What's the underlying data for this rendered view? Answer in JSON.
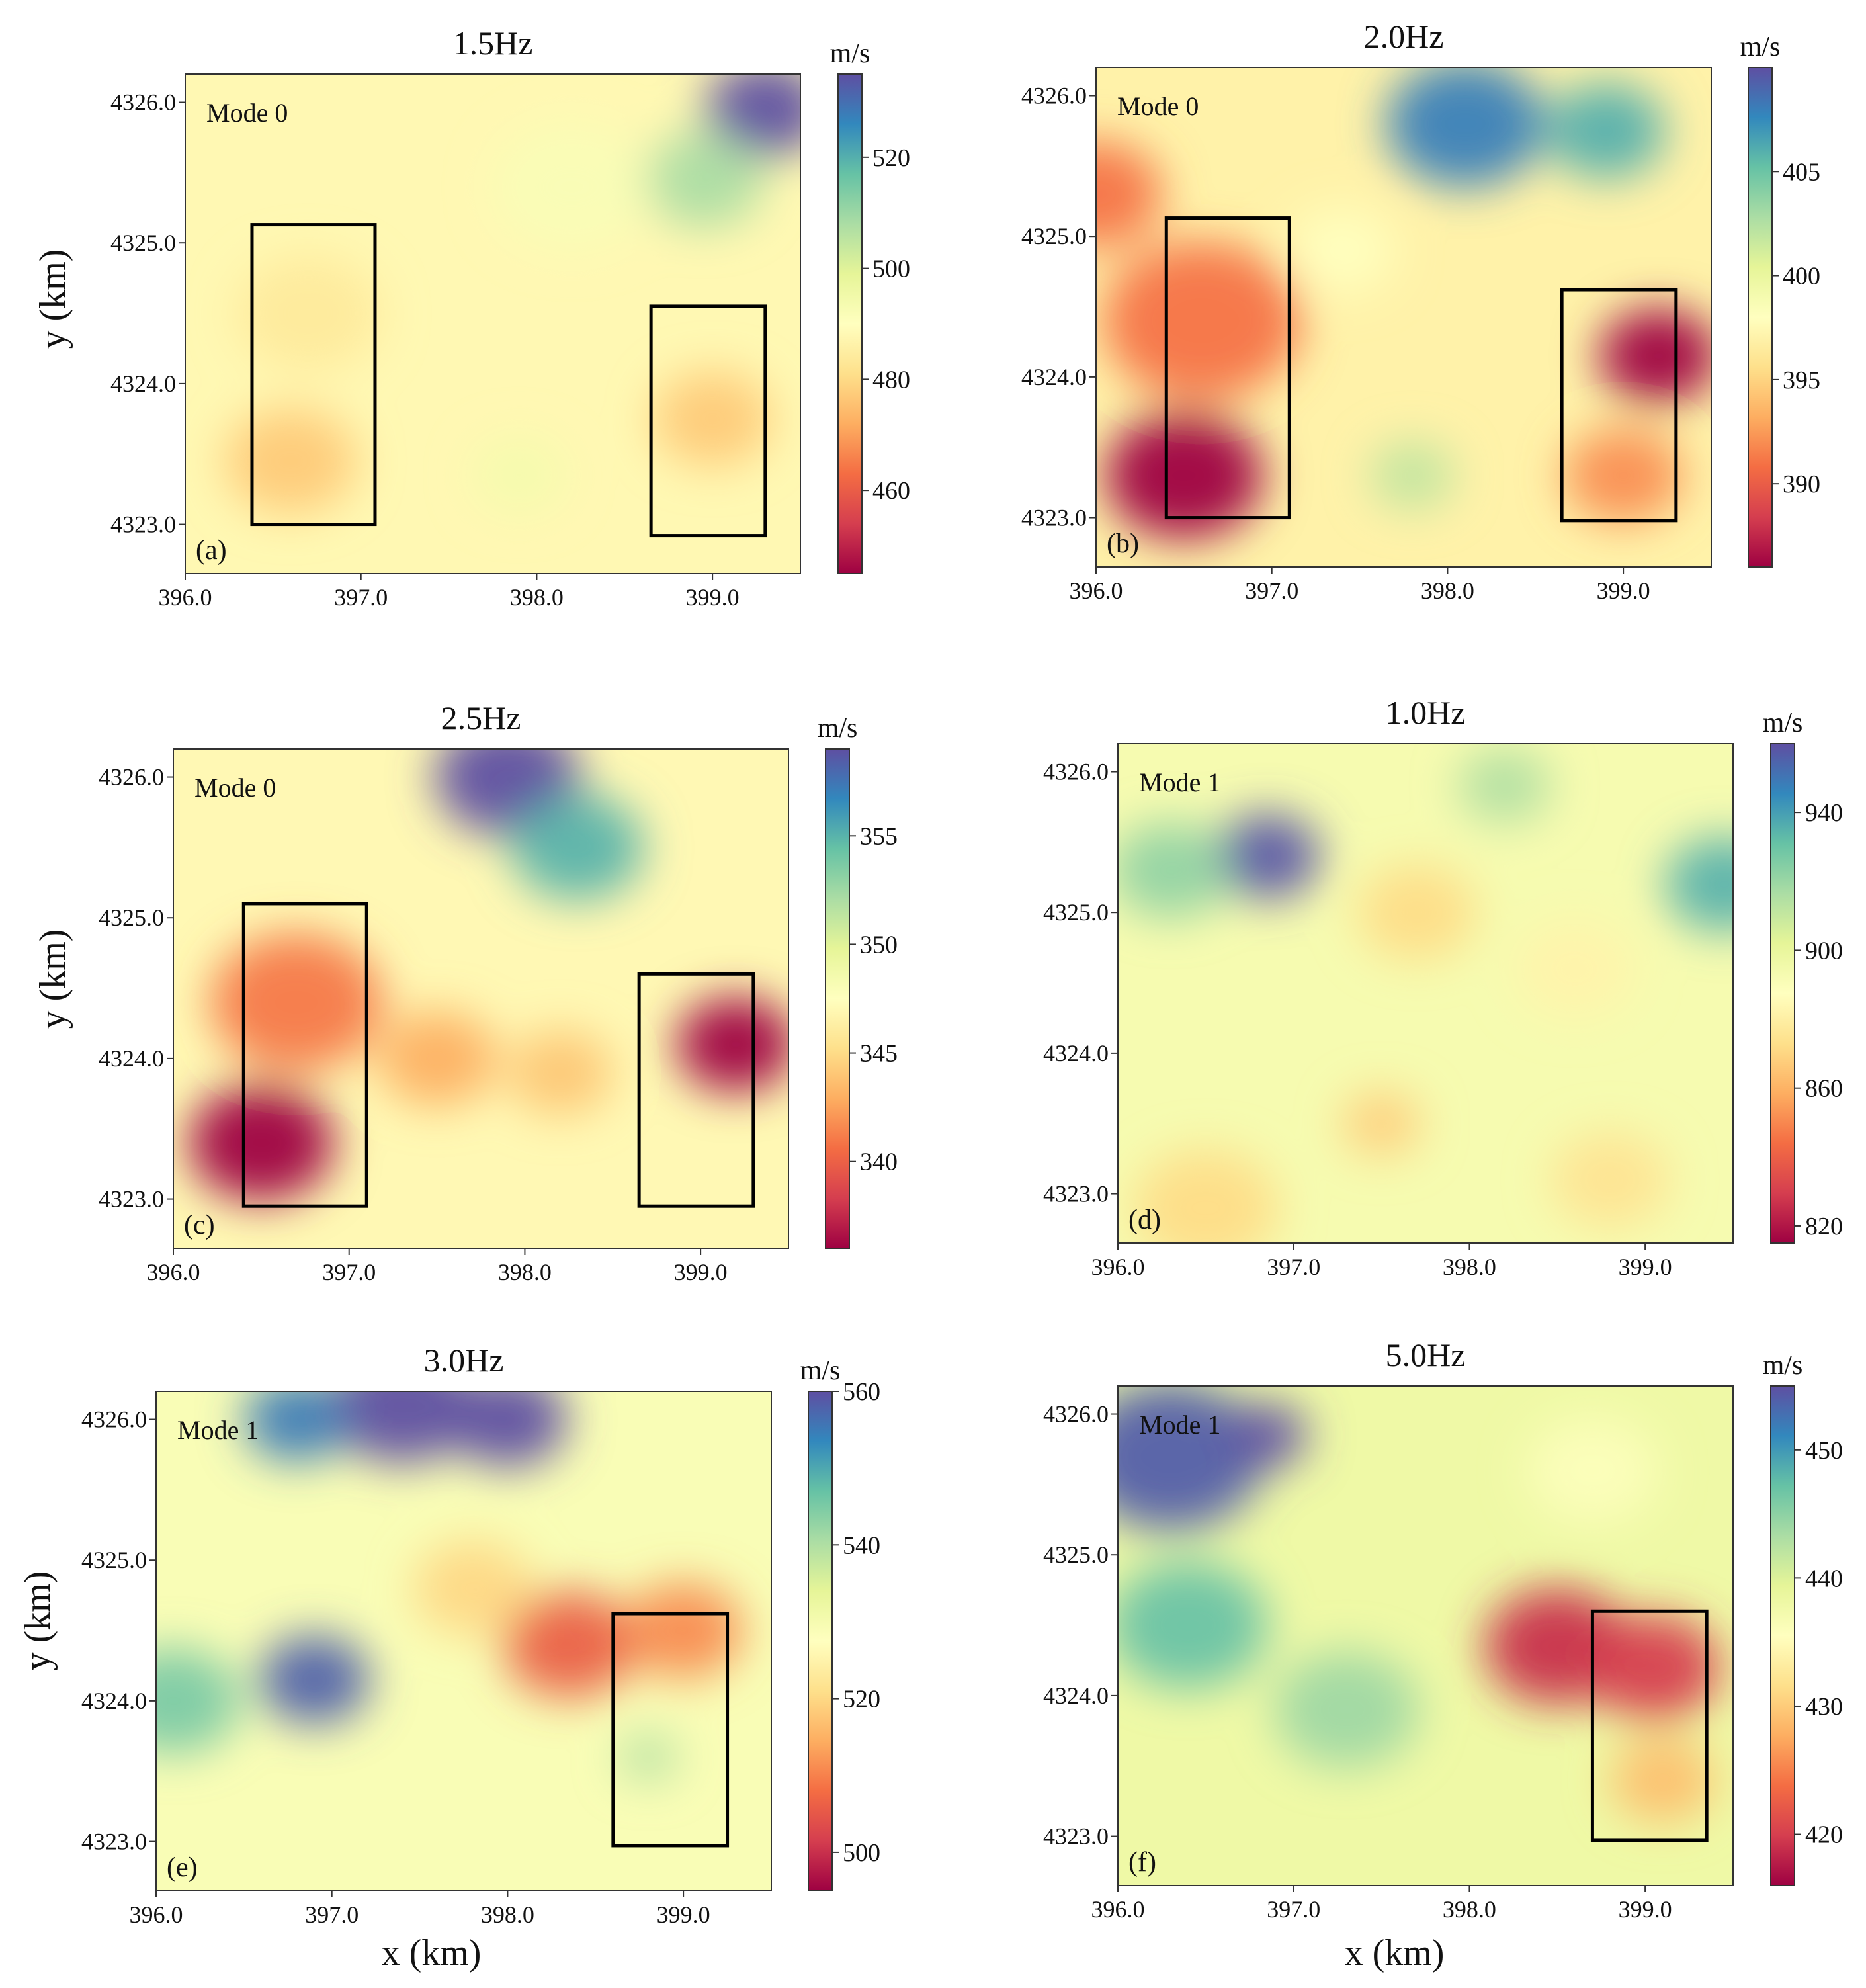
{
  "figure": {
    "xlabel": "x (km)",
    "ylabel": "y (km)",
    "colorbar_unit": "m/s",
    "colormap": [
      "#9e0142",
      "#d53e4f",
      "#f46d43",
      "#fdae61",
      "#fee08b",
      "#ffffbf",
      "#e6f598",
      "#abdda4",
      "#66c2a5",
      "#3288bd",
      "#5e4fa2"
    ]
  },
  "chart_data": [
    {
      "type": "heatmap",
      "panel": "(a)",
      "title": "1.5Hz",
      "mode": "Mode 0",
      "xlim": [
        396.0,
        399.5
      ],
      "ylim": [
        4322.65,
        4326.2
      ],
      "xticks": [
        "396.0",
        "397.0",
        "398.0",
        "399.0"
      ],
      "yticks": [
        "4323.0",
        "4324.0",
        "4325.0",
        "4326.0"
      ],
      "colorbar": {
        "range": [
          445,
          535
        ],
        "ticks": [
          "460",
          "480",
          "500",
          "520"
        ]
      },
      "background": 488,
      "blobs": [
        {
          "x": 399.3,
          "y": 4325.95,
          "v": 540,
          "r": 0.45
        },
        {
          "x": 398.95,
          "y": 4325.45,
          "v": 508,
          "r": 0.45
        },
        {
          "x": 396.6,
          "y": 4323.45,
          "v": 477,
          "r": 0.5
        },
        {
          "x": 396.7,
          "y": 4324.5,
          "v": 484,
          "r": 0.55
        },
        {
          "x": 399.0,
          "y": 4323.75,
          "v": 477,
          "r": 0.45
        },
        {
          "x": 397.9,
          "y": 4323.35,
          "v": 494,
          "r": 0.35
        },
        {
          "x": 398.2,
          "y": 4325.4,
          "v": 492,
          "r": 0.6
        }
      ],
      "boxes": [
        {
          "x0": 396.38,
          "x1": 397.08,
          "y0": 4323.0,
          "y1": 4325.13
        },
        {
          "x0": 398.65,
          "x1": 399.3,
          "y0": 4322.92,
          "y1": 4324.55
        }
      ]
    },
    {
      "type": "heatmap",
      "panel": "(b)",
      "title": "2.0Hz",
      "mode": "Mode 0",
      "xlim": [
        396.0,
        399.5
      ],
      "ylim": [
        4322.65,
        4326.2
      ],
      "xticks": [
        "396.0",
        "397.0",
        "398.0",
        "399.0"
      ],
      "yticks": [
        "4323.0",
        "4324.0",
        "4325.0",
        "4326.0"
      ],
      "colorbar": {
        "range": [
          386,
          410
        ],
        "ticks": [
          "390",
          "395",
          "400",
          "405"
        ]
      },
      "background": 397,
      "blobs": [
        {
          "x": 396.5,
          "y": 4323.3,
          "v": 385,
          "r": 0.6
        },
        {
          "x": 396.6,
          "y": 4324.4,
          "v": 391,
          "r": 0.75
        },
        {
          "x": 396.0,
          "y": 4325.3,
          "v": 391,
          "r": 0.5
        },
        {
          "x": 399.2,
          "y": 4324.15,
          "v": 386,
          "r": 0.45
        },
        {
          "x": 399.0,
          "y": 4323.3,
          "v": 392,
          "r": 0.45
        },
        {
          "x": 398.1,
          "y": 4325.8,
          "v": 408,
          "r": 0.6
        },
        {
          "x": 398.9,
          "y": 4325.75,
          "v": 406,
          "r": 0.45
        },
        {
          "x": 397.8,
          "y": 4323.3,
          "v": 402,
          "r": 0.32
        },
        {
          "x": 397.4,
          "y": 4324.9,
          "v": 398,
          "r": 0.4
        }
      ],
      "boxes": [
        {
          "x0": 396.4,
          "x1": 397.1,
          "y0": 4323.0,
          "y1": 4325.13
        },
        {
          "x0": 398.65,
          "x1": 399.3,
          "y0": 4322.98,
          "y1": 4324.62
        }
      ]
    },
    {
      "type": "heatmap",
      "panel": "(c)",
      "title": "2.5Hz",
      "mode": "Mode 0",
      "xlim": [
        396.0,
        399.5
      ],
      "ylim": [
        4322.65,
        4326.2
      ],
      "xticks": [
        "396.0",
        "397.0",
        "398.0",
        "399.0"
      ],
      "yticks": [
        "4323.0",
        "4324.0",
        "4325.0",
        "4326.0"
      ],
      "colorbar": {
        "range": [
          336,
          359
        ],
        "ticks": [
          "340",
          "345",
          "350",
          "355"
        ]
      },
      "background": 347,
      "blobs": [
        {
          "x": 396.5,
          "y": 4323.4,
          "v": 335,
          "r": 0.55
        },
        {
          "x": 396.7,
          "y": 4324.4,
          "v": 341,
          "r": 0.65
        },
        {
          "x": 399.2,
          "y": 4324.1,
          "v": 336,
          "r": 0.45
        },
        {
          "x": 397.9,
          "y": 4326.0,
          "v": 361,
          "r": 0.55
        },
        {
          "x": 398.3,
          "y": 4325.5,
          "v": 355,
          "r": 0.5
        },
        {
          "x": 397.5,
          "y": 4324.0,
          "v": 343,
          "r": 0.45
        },
        {
          "x": 398.2,
          "y": 4323.9,
          "v": 344,
          "r": 0.4
        }
      ],
      "boxes": [
        {
          "x0": 396.4,
          "x1": 397.1,
          "y0": 4322.95,
          "y1": 4325.1
        },
        {
          "x0": 398.65,
          "x1": 399.3,
          "y0": 4322.95,
          "y1": 4324.6
        }
      ]
    },
    {
      "type": "heatmap",
      "panel": "(d)",
      "title": "1.0Hz",
      "mode": "Mode 1",
      "xlim": [
        396.0,
        399.5
      ],
      "ylim": [
        4322.65,
        4326.2
      ],
      "xticks": [
        "396.0",
        "397.0",
        "398.0",
        "399.0"
      ],
      "yticks": [
        "4323.0",
        "4324.0",
        "4325.0",
        "4326.0"
      ],
      "colorbar": {
        "range": [
          815,
          960
        ],
        "ticks": [
          "820",
          "860",
          "900",
          "940"
        ]
      },
      "background": 893,
      "blobs": [
        {
          "x": 396.85,
          "y": 4325.4,
          "v": 958,
          "r": 0.4
        },
        {
          "x": 396.3,
          "y": 4325.3,
          "v": 922,
          "r": 0.45
        },
        {
          "x": 399.45,
          "y": 4325.2,
          "v": 935,
          "r": 0.45
        },
        {
          "x": 398.2,
          "y": 4325.9,
          "v": 915,
          "r": 0.35
        },
        {
          "x": 397.7,
          "y": 4325.0,
          "v": 872,
          "r": 0.45
        },
        {
          "x": 396.5,
          "y": 4322.9,
          "v": 872,
          "r": 0.55
        },
        {
          "x": 397.5,
          "y": 4323.5,
          "v": 868,
          "r": 0.3
        },
        {
          "x": 398.8,
          "y": 4323.1,
          "v": 875,
          "r": 0.45
        },
        {
          "x": 398.6,
          "y": 4324.6,
          "v": 882,
          "r": 0.45
        }
      ],
      "boxes": []
    },
    {
      "type": "heatmap",
      "panel": "(e)",
      "title": "3.0Hz",
      "mode": "Mode 1",
      "xlim": [
        396.0,
        399.5
      ],
      "ylim": [
        4322.65,
        4326.2
      ],
      "xticks": [
        "396.0",
        "397.0",
        "398.0",
        "399.0"
      ],
      "yticks": [
        "4323.0",
        "4324.0",
        "4325.0",
        "4326.0"
      ],
      "colorbar": {
        "range": [
          495,
          560
        ],
        "ticks": [
          "500",
          "520",
          "540",
          "560"
        ]
      },
      "background": 529,
      "blobs": [
        {
          "x": 397.4,
          "y": 4326.1,
          "v": 566,
          "r": 0.55
        },
        {
          "x": 398.0,
          "y": 4326.0,
          "v": 562,
          "r": 0.45
        },
        {
          "x": 396.8,
          "y": 4326.0,
          "v": 555,
          "r": 0.4
        },
        {
          "x": 396.9,
          "y": 4324.15,
          "v": 558,
          "r": 0.42
        },
        {
          "x": 396.1,
          "y": 4324.0,
          "v": 545,
          "r": 0.5
        },
        {
          "x": 398.35,
          "y": 4324.4,
          "v": 506,
          "r": 0.5
        },
        {
          "x": 399.0,
          "y": 4324.5,
          "v": 511,
          "r": 0.45
        },
        {
          "x": 397.8,
          "y": 4324.8,
          "v": 520,
          "r": 0.45
        },
        {
          "x": 398.8,
          "y": 4323.6,
          "v": 540,
          "r": 0.22
        }
      ],
      "boxes": [
        {
          "x0": 398.6,
          "x1": 399.25,
          "y0": 4322.97,
          "y1": 4324.62
        }
      ]
    },
    {
      "type": "heatmap",
      "panel": "(f)",
      "title": "5.0Hz",
      "mode": "Mode 1",
      "xlim": [
        396.0,
        399.5
      ],
      "ylim": [
        4322.65,
        4326.2
      ],
      "xticks": [
        "396.0",
        "397.0",
        "398.0",
        "399.0"
      ],
      "yticks": [
        "4323.0",
        "4324.0",
        "4325.0",
        "4326.0"
      ],
      "colorbar": {
        "range": [
          416,
          455
        ],
        "ticks": [
          "420",
          "430",
          "440",
          "450"
        ]
      },
      "background": 438,
      "blobs": [
        {
          "x": 396.3,
          "y": 4325.7,
          "v": 454,
          "r": 0.7
        },
        {
          "x": 396.85,
          "y": 4325.85,
          "v": 460,
          "r": 0.3
        },
        {
          "x": 396.4,
          "y": 4324.5,
          "v": 447,
          "r": 0.6
        },
        {
          "x": 397.3,
          "y": 4323.9,
          "v": 444,
          "r": 0.55
        },
        {
          "x": 398.5,
          "y": 4324.35,
          "v": 419,
          "r": 0.55
        },
        {
          "x": 399.05,
          "y": 4324.2,
          "v": 420,
          "r": 0.5
        },
        {
          "x": 399.1,
          "y": 4323.4,
          "v": 429,
          "r": 0.4
        },
        {
          "x": 398.7,
          "y": 4325.6,
          "v": 436,
          "r": 0.5
        }
      ],
      "boxes": [
        {
          "x0": 398.7,
          "x1": 399.35,
          "y0": 4322.97,
          "y1": 4324.6
        }
      ]
    }
  ]
}
